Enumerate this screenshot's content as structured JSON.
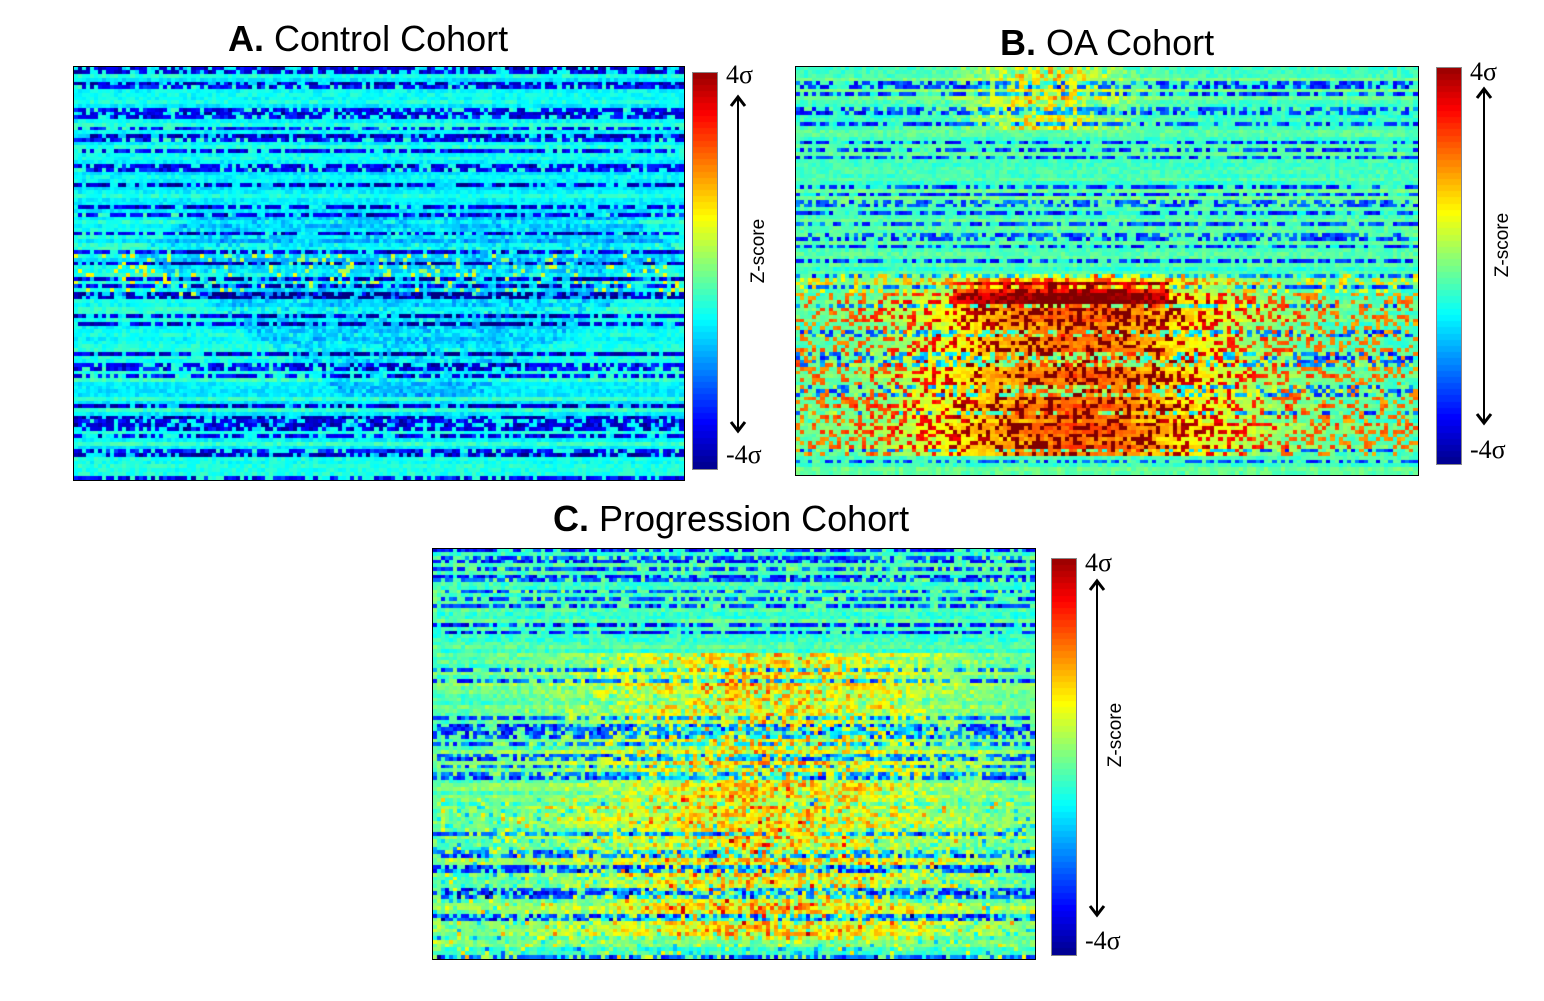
{
  "chart_data": [
    {
      "type": "heatmap",
      "panel_letter": "A.",
      "title": "Control Cohort",
      "colorbar": {
        "label": "Z-score",
        "max_label": "4σ",
        "min_label": "-4σ",
        "range": [
          -4,
          4
        ],
        "colormap": "jet"
      },
      "pattern": "mostly near-zero with negative (blue) streaks; few mild positive regions"
    },
    {
      "type": "heatmap",
      "panel_letter": "B.",
      "title": "OA Cohort",
      "colorbar": {
        "label": "Z-score",
        "max_label": "4σ",
        "min_label": "-4σ",
        "range": [
          -4,
          4
        ],
        "colormap": "jet"
      },
      "pattern": "strong positive (red) bands in central and lower rows"
    },
    {
      "type": "heatmap",
      "panel_letter": "C.",
      "title": "Progression Cohort",
      "colorbar": {
        "label": "Z-score",
        "max_label": "4σ",
        "min_label": "-4σ",
        "range": [
          -4,
          4
        ],
        "colormap": "jet"
      },
      "pattern": "mixed positive (orange) and negative (blue) streaks"
    }
  ]
}
